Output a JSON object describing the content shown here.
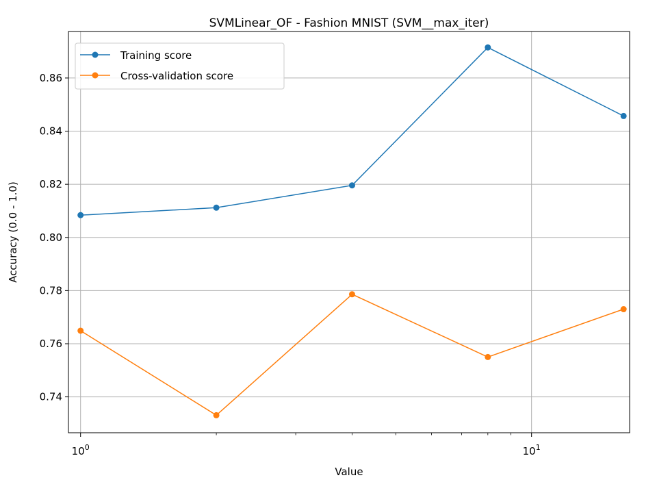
{
  "chart_data": {
    "type": "line",
    "title": "SVMLinear_OF - Fashion MNIST (SVM__max_iter)",
    "xlabel": "Value",
    "ylabel": "Accuracy (0.0 - 1.0)",
    "x_scale": "log",
    "xlim": [
      0.94,
      16.5
    ],
    "ylim": [
      0.7265,
      0.8775
    ],
    "grid": true,
    "legend_position": "upper-left",
    "x": [
      1,
      2,
      4,
      8,
      16
    ],
    "x_ticks": [
      {
        "value": 1,
        "base": "10",
        "exp": "0"
      },
      {
        "value": 10,
        "base": "10",
        "exp": "1"
      }
    ],
    "y_ticks": [
      {
        "value": 0.74,
        "label": "0.74"
      },
      {
        "value": 0.76,
        "label": "0.76"
      },
      {
        "value": 0.78,
        "label": "0.78"
      },
      {
        "value": 0.8,
        "label": "0.80"
      },
      {
        "value": 0.82,
        "label": "0.82"
      },
      {
        "value": 0.84,
        "label": "0.84"
      },
      {
        "value": 0.86,
        "label": "0.86"
      }
    ],
    "series": [
      {
        "name": "Training score",
        "color": "#1f77b4",
        "values": [
          0.8084,
          0.8112,
          0.8196,
          0.8715,
          0.8457
        ]
      },
      {
        "name": "Cross-validation score",
        "color": "#ff7f0e",
        "values": [
          0.7649,
          0.7331,
          0.7786,
          0.755,
          0.773
        ]
      }
    ]
  }
}
